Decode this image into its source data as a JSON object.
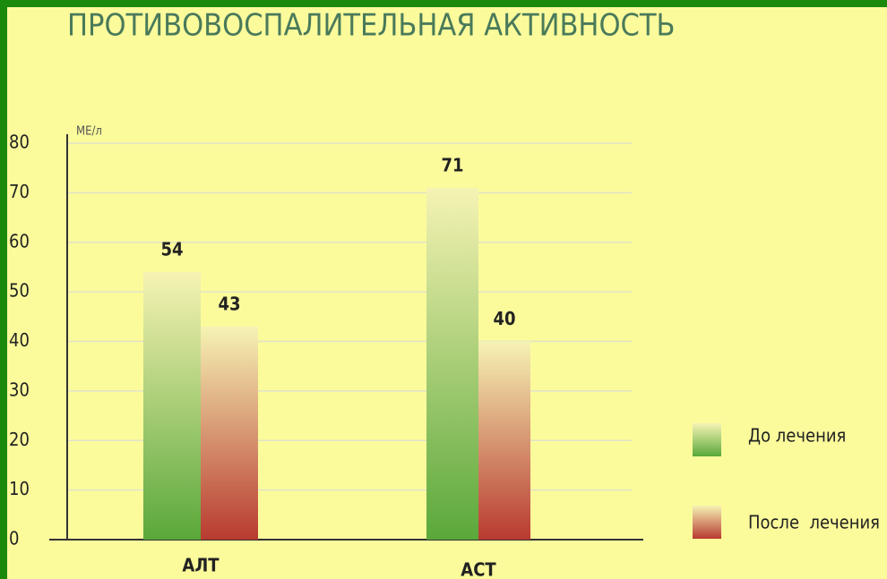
{
  "chart_data": {
    "type": "bar",
    "title": "ПРОТИВОВОСПАЛИТЕЛЬНАЯ АКТИВНОСТЬ",
    "y_label": "МЕ/л",
    "categories": [
      "АЛТ",
      "АСТ"
    ],
    "series": [
      {
        "name": "До лечения",
        "color": "#5aa83a",
        "values": [
          54,
          71
        ]
      },
      {
        "name": "После  лечения",
        "color": "#b83a30",
        "values": [
          43,
          40
        ]
      }
    ],
    "ylim": [
      0,
      80
    ],
    "yticks": [
      0,
      10,
      20,
      30,
      40,
      50,
      60,
      70,
      80
    ],
    "grid": true,
    "legend": "right"
  }
}
